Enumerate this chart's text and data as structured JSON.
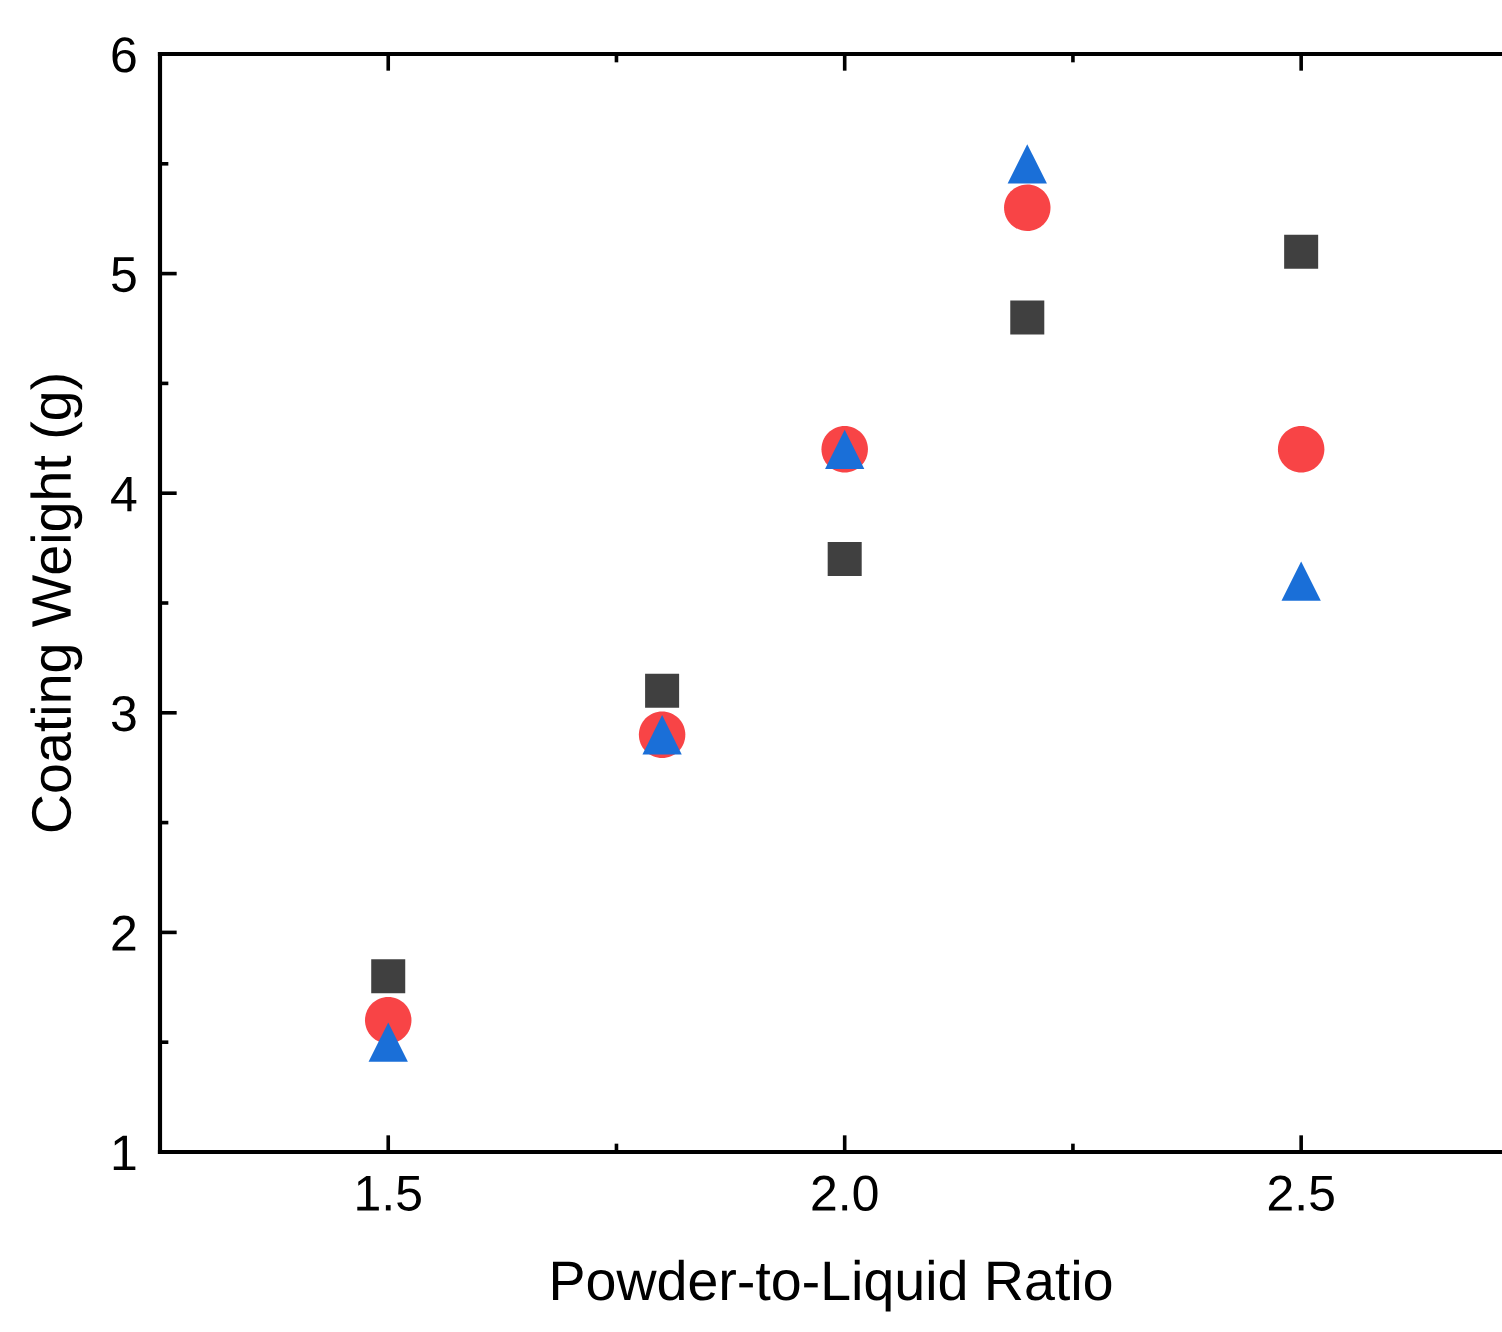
{
  "chart_data": {
    "type": "scatter",
    "xlabel": "Powder-to-Liquid Ratio",
    "ylabel": "Coating Weight (g)",
    "xlim": [
      1.25,
      2.72
    ],
    "ylim": [
      1,
      6
    ],
    "xticks": [
      {
        "value": 1.5,
        "label": "1.5"
      },
      {
        "value": 2.0,
        "label": "2.0"
      },
      {
        "value": 2.5,
        "label": "2.5"
      }
    ],
    "yticks": [
      1,
      2,
      3,
      4,
      5,
      6
    ],
    "grid": false,
    "legend": false,
    "series": [
      {
        "color": "#404040",
        "marker": "square",
        "x": [
          1.5,
          1.8,
          2.0,
          2.2,
          2.5
        ],
        "values": [
          1.8,
          3.1,
          3.7,
          4.8,
          5.1
        ]
      },
      {
        "color": "#f84446",
        "marker": "circle",
        "x": [
          1.5,
          1.8,
          2.0,
          2.2,
          2.5
        ],
        "values": [
          1.6,
          2.9,
          4.2,
          5.3,
          4.2
        ]
      },
      {
        "color": "#1a6fd8",
        "marker": "triangle",
        "x": [
          1.5,
          1.8,
          2.0,
          2.2,
          2.5
        ],
        "values": [
          1.5,
          2.9,
          4.2,
          5.5,
          3.6
        ]
      }
    ]
  }
}
